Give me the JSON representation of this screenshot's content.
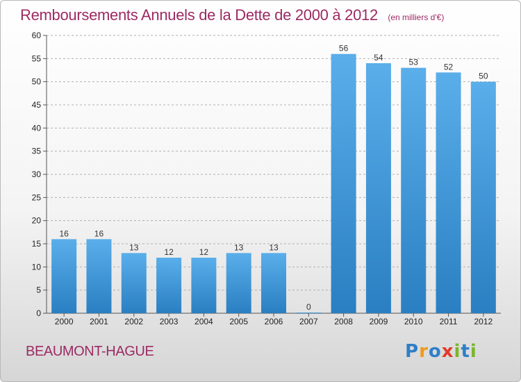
{
  "header": {
    "title": "Remboursements Annuels de la Dette de 2000 à 2012",
    "subtitle": "(en milliers d'€)"
  },
  "footer": {
    "commune": "BEAUMONT-HAGUE",
    "brand": "Proxiti",
    "brand_letters": [
      {
        "ch": "P",
        "color": "#2f7fc7"
      },
      {
        "ch": "r",
        "color": "#f09a1a"
      },
      {
        "ch": "o",
        "color": "#2f7fc7"
      },
      {
        "ch": "x",
        "color": "#e23a2a"
      },
      {
        "ch": "i",
        "color": "#7ab52b"
      },
      {
        "ch": "t",
        "color": "#2f7fc7"
      },
      {
        "ch": "i",
        "color": "#7ab52b"
      }
    ]
  },
  "colors": {
    "bar_top": "#5aaeea",
    "bar_bottom": "#2a7fc2",
    "grid": "#b0b0b0",
    "title": "#9c2a63"
  },
  "chart_data": {
    "type": "bar",
    "title": "Remboursements Annuels de la Dette de 2000 à 2012",
    "subtitle": "(en milliers d'€)",
    "xlabel": "",
    "ylabel": "",
    "categories": [
      "2000",
      "2001",
      "2002",
      "2003",
      "2004",
      "2005",
      "2006",
      "2007",
      "2008",
      "2009",
      "2010",
      "2011",
      "2012"
    ],
    "values": [
      16,
      16,
      13,
      12,
      12,
      13,
      13,
      0,
      56,
      54,
      53,
      52,
      50
    ],
    "data_labels": [
      "16",
      "16",
      "13",
      "12",
      "12",
      "13",
      "13",
      "0",
      "56",
      "54",
      "53",
      "52",
      "50"
    ],
    "ylim": [
      0,
      60
    ],
    "yticks": [
      0,
      5,
      10,
      15,
      20,
      25,
      30,
      35,
      40,
      45,
      50,
      55,
      60
    ],
    "grid": true,
    "grid_style": "dashed horizontal",
    "legend": "none"
  }
}
